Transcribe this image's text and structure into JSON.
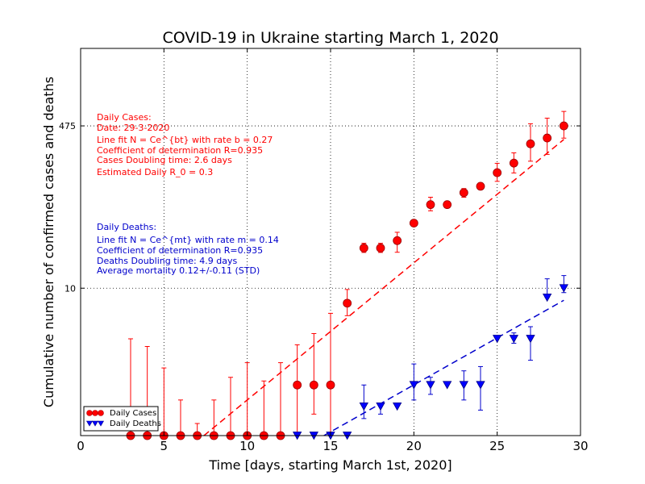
{
  "chart_data": {
    "type": "scatter",
    "title": "COVID-19 in Ukraine starting March 1, 2020",
    "xlabel": "Time [days, starting March 1st, 2020]",
    "ylabel": "Cumulative number of confirmed cases and deaths",
    "xlim": [
      0,
      30
    ],
    "y_scale": "log",
    "ylim": [
      0.3,
      3000
    ],
    "xticks": [
      "0",
      "5",
      "10",
      "15",
      "20",
      "25",
      "30"
    ],
    "yticks": [
      {
        "value": 10,
        "label": "10"
      },
      {
        "value": 475,
        "label": "475"
      }
    ],
    "grid": true,
    "legend_position": "bottom-left",
    "series": [
      {
        "name": "Daily Cases",
        "color": "#ff0000",
        "marker": "circle",
        "x": [
          3,
          4,
          5,
          6,
          7,
          8,
          9,
          10,
          11,
          12,
          13,
          14,
          15,
          16,
          17,
          18,
          19,
          20,
          21,
          22,
          23,
          24,
          25,
          26,
          27,
          28,
          29
        ],
        "y": [
          0.3,
          0.3,
          0.3,
          0.3,
          0.3,
          0.3,
          0.3,
          0.3,
          0.3,
          0.3,
          1,
          1,
          1,
          7,
          26,
          26,
          31,
          47,
          73,
          73,
          97,
          113,
          156,
          196,
          310,
          356,
          475
        ],
        "err_low": [
          0,
          0,
          0,
          0,
          0,
          0,
          0,
          0,
          0,
          0,
          0.7,
          0.5,
          0.7,
          1.8,
          2.6,
          2.6,
          7.5,
          2,
          10,
          0,
          10,
          5,
          29,
          41,
          105,
          115,
          120
        ],
        "err_high": [
          2.7,
          2.2,
          1.2,
          0.4,
          0.1,
          0.4,
          0.9,
          1.4,
          0.8,
          1.4,
          1.6,
          2.4,
          4.5,
          2.7,
          3.1,
          3.1,
          6.8,
          3,
          14,
          0,
          10,
          4,
          39,
          54,
          190,
          215,
          195
        ]
      },
      {
        "name": "Daily Deaths",
        "color": "#0000cc",
        "marker": "triangle-down",
        "x": [
          13,
          14,
          15,
          16,
          17,
          18,
          19,
          20,
          21,
          22,
          23,
          24,
          25,
          26,
          27,
          28,
          29
        ],
        "y": [
          0.3,
          0.3,
          0.3,
          0.3,
          0.6,
          0.6,
          0.6,
          1,
          1,
          1,
          1,
          1,
          3,
          3,
          3,
          8,
          10
        ],
        "err_low": [
          0,
          0,
          0,
          0,
          0.15,
          0.1,
          0,
          0.3,
          0.2,
          0,
          0.3,
          0.45,
          0,
          0.3,
          1.2,
          0,
          1
        ],
        "err_high": [
          0,
          0,
          0,
          0,
          0.4,
          0.05,
          0,
          0.65,
          0.2,
          0,
          0.4,
          0.55,
          0,
          0.45,
          1,
          4.5,
          3.5
        ]
      }
    ],
    "fits": [
      {
        "color": "#ff0000",
        "x": [
          7.4,
          29
        ],
        "y": [
          0.3,
          344
        ]
      },
      {
        "color": "#0000cc",
        "x": [
          14.6,
          29
        ],
        "y": [
          0.3,
          7.5
        ]
      }
    ],
    "annotations": {
      "cases": [
        "Daily Cases:",
        "Date: 29-3-2020",
        "Line fit N = Ce^{bt} with rate b = 0.27",
        "Coefficient of determination R=0.935",
        "Cases Doubling time: 2.6 days",
        "Estimated Daily R_0 = 0.3"
      ],
      "deaths": [
        "Daily Deaths:",
        "Line fit N = Ce^{mt} with rate m = 0.14",
        "Coefficient of determination R=0.935",
        "Deaths Doubling time: 4.9 days",
        "Average mortality 0.12+/-0.11 (STD)"
      ]
    },
    "legend": [
      "Daily Cases",
      "Daily Deaths"
    ]
  }
}
